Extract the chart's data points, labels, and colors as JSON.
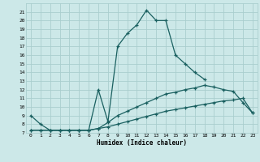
{
  "xlabel": "Humidex (Indice chaleur)",
  "background_color": "#cce8e8",
  "grid_color": "#aacece",
  "line_color": "#1a6060",
  "xlim": [
    -0.5,
    23.5
  ],
  "ylim": [
    7,
    22
  ],
  "yticks": [
    7,
    8,
    9,
    10,
    11,
    12,
    13,
    14,
    15,
    16,
    17,
    18,
    19,
    20,
    21
  ],
  "xticks": [
    0,
    1,
    2,
    3,
    4,
    5,
    6,
    7,
    8,
    9,
    10,
    11,
    12,
    13,
    14,
    15,
    16,
    17,
    18,
    19,
    20,
    21,
    22,
    23
  ],
  "curve_main_x": [
    0,
    1,
    2,
    3,
    4,
    5,
    6,
    7,
    8,
    9,
    10,
    11,
    12,
    13,
    14,
    15,
    16,
    17,
    18
  ],
  "curve_main_y": [
    9.0,
    8.0,
    7.3,
    7.3,
    7.3,
    7.3,
    7.3,
    12.0,
    8.3,
    17.0,
    18.5,
    19.5,
    21.2,
    20.0,
    20.0,
    16.0,
    15.0,
    14.0,
    13.2
  ],
  "curve_med_x": [
    0,
    1,
    2,
    3,
    4,
    5,
    6,
    7,
    8,
    9,
    10,
    11,
    12,
    13,
    14,
    15,
    16,
    17,
    18,
    19,
    20,
    21,
    22,
    23
  ],
  "curve_med_y": [
    7.3,
    7.3,
    7.3,
    7.3,
    7.3,
    7.3,
    7.3,
    7.5,
    8.2,
    9.0,
    9.5,
    10.0,
    10.5,
    11.0,
    11.5,
    11.7,
    12.0,
    12.2,
    12.5,
    12.3,
    12.0,
    11.8,
    10.5,
    9.3
  ],
  "curve_low_x": [
    0,
    1,
    2,
    3,
    4,
    5,
    6,
    7,
    8,
    9,
    10,
    11,
    12,
    13,
    14,
    15,
    16,
    17,
    18,
    19,
    20,
    21,
    22,
    23
  ],
  "curve_low_y": [
    7.3,
    7.3,
    7.3,
    7.3,
    7.3,
    7.3,
    7.3,
    7.5,
    7.7,
    8.0,
    8.3,
    8.6,
    8.9,
    9.2,
    9.5,
    9.7,
    9.9,
    10.1,
    10.3,
    10.5,
    10.7,
    10.8,
    11.0,
    9.3
  ]
}
